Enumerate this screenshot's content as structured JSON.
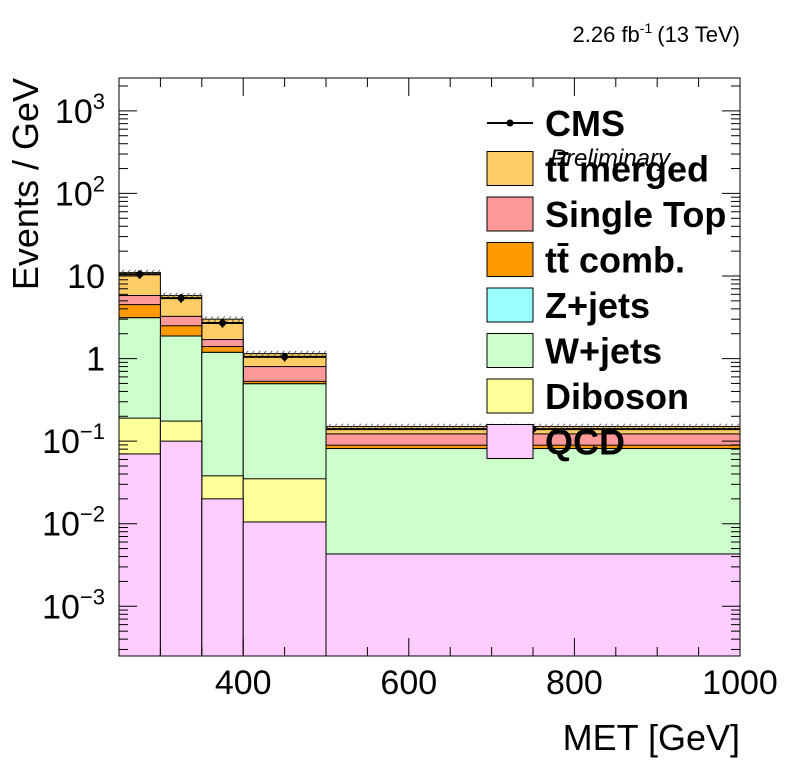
{
  "header": {
    "lumi_value": "2.26 fb",
    "lumi_exp": "-1",
    "lumi_energy": "(13 TeV)"
  },
  "cms_label": "CMS",
  "preliminary_label": "Preliminary",
  "chart_data": {
    "type": "histogram-stacked",
    "xlabel": "MET [GeV]",
    "ylabel": "Events / GeV",
    "xlim": [
      250,
      1000
    ],
    "ylim": [
      0.00025,
      2500
    ],
    "yscale": "log",
    "grid": false,
    "legend_position": "top-right",
    "bin_edges": [
      250,
      300,
      350,
      400,
      500,
      1000
    ],
    "x_ticks": [
      400,
      600,
      800,
      1000
    ],
    "x_tick_labels": [
      "400",
      "600",
      "800",
      "1000"
    ],
    "y_ticks": [
      {
        "value": 1000,
        "base": "10",
        "exp": "3"
      },
      {
        "value": 100,
        "base": "10",
        "exp": "2"
      },
      {
        "value": 10,
        "base": "10",
        "exp": ""
      },
      {
        "value": 1,
        "base": "1",
        "exp": ""
      },
      {
        "value": 0.1,
        "base": "10",
        "exp": "−1"
      },
      {
        "value": 0.01,
        "base": "10",
        "exp": "−2"
      },
      {
        "value": 0.001,
        "base": "10",
        "exp": "−3"
      }
    ],
    "stack": [
      {
        "name": "QCD",
        "color": "#ffccff",
        "values": [
          0.07,
          0.1,
          0.02,
          0.0105,
          0.0043
        ]
      },
      {
        "name": "Diboson",
        "color": "#ffff99",
        "values": [
          0.12,
          0.075,
          0.018,
          0.0245,
          0.0
        ]
      },
      {
        "name": "W+jets",
        "color": "#ccffcc",
        "values": [
          2.93,
          1.7,
          1.15,
          0.46,
          0.077
        ]
      },
      {
        "name": "Z+jets",
        "color": "#99ffff",
        "values": [
          0.0,
          0.0,
          0.0,
          0.0,
          0.0
        ]
      },
      {
        "name": "tt̄ comb.",
        "color": "#ff9900",
        "values": [
          1.38,
          0.62,
          0.21,
          0.035,
          0.008
        ]
      },
      {
        "name": "Single Top",
        "color": "#ff9999",
        "values": [
          1.3,
          0.75,
          0.3,
          0.27,
          0.033
        ]
      },
      {
        "name": "tt̄ merged",
        "color": "#ffcc66",
        "values": [
          5.2,
          2.55,
          1.3,
          0.35,
          0.028
        ]
      }
    ],
    "data_points": {
      "name": "CMS",
      "x": [
        275,
        325,
        375,
        450,
        750
      ],
      "y": [
        10.5,
        5.4,
        2.7,
        1.05,
        0.14
      ]
    },
    "legend": [
      {
        "label": "CMS",
        "kind": "marker"
      },
      {
        "label": "tt̄ merged",
        "color": "#ffcc66"
      },
      {
        "label": "Single Top",
        "color": "#ff9999"
      },
      {
        "label": "tt̄ comb.",
        "color": "#ff9900"
      },
      {
        "label": "Z+jets",
        "color": "#99ffff"
      },
      {
        "label": "W+jets",
        "color": "#ccffcc"
      },
      {
        "label": "Diboson",
        "color": "#ffff99"
      },
      {
        "label": "QCD",
        "color": "#ffccff"
      }
    ]
  }
}
